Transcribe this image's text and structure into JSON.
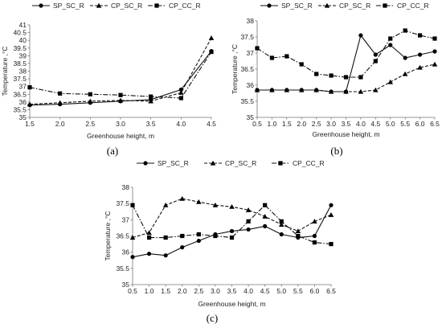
{
  "chart_data": [
    {
      "type": "line",
      "panel_label": "(a)",
      "xlabel": "Greenhouse height, m",
      "ylabel": "Temperature ,°C",
      "xlim": [
        1.5,
        4.5
      ],
      "ylim": [
        35,
        41
      ],
      "x_ticks": [
        "1.5",
        "2.0",
        "2.5",
        "3.0",
        "3.5",
        "4.0",
        "4.5"
      ],
      "y_ticks": [
        "35",
        "35.5",
        "36",
        "36.5",
        "37",
        "37.5",
        "38",
        "38.5",
        "39",
        "39.5",
        "40",
        "40.5",
        "41"
      ],
      "grid": false,
      "legend_position": "top",
      "series": [
        {
          "name": "SP_SC_R",
          "marker": "circle",
          "dash": "solid",
          "x": [
            1.5,
            2.0,
            2.5,
            3.0,
            3.5,
            4.0,
            4.5
          ],
          "y": [
            35.8,
            35.85,
            35.95,
            36.05,
            36.15,
            36.8,
            39.3
          ]
        },
        {
          "name": "CP_SC_R",
          "marker": "triangle",
          "dash": "dash",
          "x": [
            1.5,
            2.0,
            2.5,
            3.0,
            3.5,
            4.0,
            4.5
          ],
          "y": [
            35.85,
            35.95,
            36.05,
            36.1,
            36.05,
            36.6,
            40.15
          ]
        },
        {
          "name": "CP_CC_R",
          "marker": "square",
          "dash": "dashdot",
          "x": [
            1.5,
            2.0,
            2.5,
            3.0,
            3.5,
            4.0,
            4.5
          ],
          "y": [
            36.95,
            36.55,
            36.5,
            36.45,
            36.35,
            36.25,
            39.25
          ]
        }
      ]
    },
    {
      "type": "line",
      "panel_label": "(b)",
      "xlabel": "Greenhouse height, m",
      "ylabel": "Temperature ,°C",
      "xlim": [
        0.5,
        6.5
      ],
      "ylim": [
        35,
        38
      ],
      "x_ticks": [
        "0.5",
        "1.0",
        "1.5",
        "2.0",
        "2.5",
        "3.0",
        "3.5",
        "4.0",
        "4.5",
        "5.0",
        "5.5",
        "6.0",
        "6.5"
      ],
      "y_ticks": [
        "35",
        "35.5",
        "36",
        "36.5",
        "37",
        "37.5",
        "38"
      ],
      "grid": false,
      "legend_position": "top",
      "series": [
        {
          "name": "SP_SC_R",
          "marker": "circle",
          "dash": "solid",
          "x": [
            0.5,
            1.0,
            1.5,
            2.0,
            2.5,
            3.0,
            3.5,
            4.0,
            4.5,
            5.0,
            5.5,
            6.0,
            6.5
          ],
          "y": [
            35.85,
            35.85,
            35.85,
            35.85,
            35.85,
            35.8,
            35.8,
            37.55,
            36.95,
            37.25,
            36.85,
            36.95,
            37.05
          ]
        },
        {
          "name": "CP_SC_R",
          "marker": "triangle",
          "dash": "dash",
          "x": [
            0.5,
            1.0,
            1.5,
            2.0,
            2.5,
            3.0,
            3.5,
            4.0,
            4.5,
            5.0,
            5.5,
            6.0,
            6.5
          ],
          "y": [
            35.85,
            35.85,
            35.85,
            35.85,
            35.85,
            35.8,
            35.8,
            35.8,
            35.85,
            36.1,
            36.35,
            36.55,
            36.65
          ]
        },
        {
          "name": "CP_CC_R",
          "marker": "square",
          "dash": "dashdot",
          "x": [
            0.5,
            1.0,
            1.5,
            2.0,
            2.5,
            3.0,
            3.5,
            4.0,
            4.5,
            5.0,
            5.5,
            6.0,
            6.5
          ],
          "y": [
            37.15,
            36.85,
            36.9,
            36.65,
            36.35,
            36.3,
            36.25,
            36.25,
            36.75,
            37.45,
            37.7,
            37.55,
            37.45
          ]
        }
      ]
    },
    {
      "type": "line",
      "panel_label": "(c)",
      "xlabel": "Greenhouse height, m",
      "ylabel": "Temperature ,°C",
      "xlim": [
        0.5,
        6.5
      ],
      "ylim": [
        35,
        38
      ],
      "x_ticks": [
        "0.5",
        "1.0",
        "1.5",
        "2.0",
        "2.5",
        "3.0",
        "3.5",
        "4.0",
        "4.5",
        "5.0",
        "5.5",
        "6.0",
        "6.5"
      ],
      "y_ticks": [
        "35",
        "35.5",
        "36",
        "36.5",
        "37",
        "37.5",
        "38"
      ],
      "grid": false,
      "legend_position": "top",
      "series": [
        {
          "name": "SP_SC_R",
          "marker": "circle",
          "dash": "solid",
          "x": [
            0.5,
            1.0,
            1.5,
            2.0,
            2.5,
            3.0,
            3.5,
            4.0,
            4.5,
            5.0,
            5.5,
            6.0,
            6.5
          ],
          "y": [
            35.85,
            35.95,
            35.9,
            36.15,
            36.35,
            36.55,
            36.65,
            36.7,
            36.8,
            36.55,
            36.45,
            36.5,
            37.45
          ]
        },
        {
          "name": "CP_SC_R",
          "marker": "triangle",
          "dash": "dash",
          "x": [
            0.5,
            1.0,
            1.5,
            2.0,
            2.5,
            3.0,
            3.5,
            4.0,
            4.5,
            5.0,
            5.5,
            6.0,
            6.5
          ],
          "y": [
            36.45,
            36.6,
            37.45,
            37.65,
            37.55,
            37.45,
            37.4,
            37.3,
            37.1,
            36.85,
            36.65,
            36.95,
            37.15
          ]
        },
        {
          "name": "CP_CC_R",
          "marker": "square",
          "dash": "dashdot",
          "x": [
            0.5,
            1.0,
            1.5,
            2.0,
            2.5,
            3.0,
            3.5,
            4.0,
            4.5,
            5.0,
            5.5,
            6.0,
            6.5
          ],
          "y": [
            37.45,
            36.45,
            36.45,
            36.5,
            36.55,
            36.5,
            36.45,
            36.95,
            37.45,
            36.95,
            36.5,
            36.3,
            36.25
          ]
        }
      ]
    }
  ]
}
